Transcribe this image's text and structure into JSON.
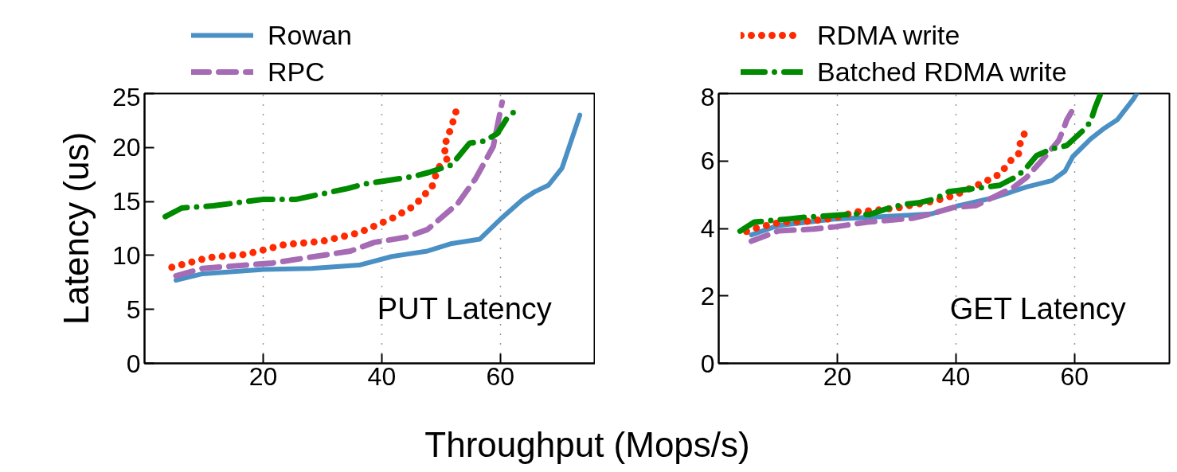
{
  "chart_data": [
    {
      "type": "line",
      "ylabel": "Latency (us)",
      "xlabel": "Throughput (Mops/s)",
      "annotations": [
        "PUT Latency"
      ],
      "xlim": [
        0,
        76
      ],
      "ylim": [
        0,
        25
      ],
      "xticks": [
        20,
        40,
        60
      ],
      "yticks": [
        0,
        5,
        10,
        15,
        20,
        25
      ],
      "grid": "x",
      "legend": "top",
      "series": [
        {
          "name": "Rowan",
          "color": "#4a90c4",
          "line_style": "solid",
          "x": [
            5.3,
            9.8,
            20.1,
            28.1,
            36.2,
            41.7,
            47.7,
            51.8,
            56.5,
            60.3,
            63.8,
            65.8,
            68.1,
            70.4,
            73.4
          ],
          "values": [
            7.7,
            8.3,
            8.7,
            8.8,
            9.1,
            9.9,
            10.4,
            11.1,
            11.5,
            13.5,
            15.2,
            15.9,
            16.5,
            18.1,
            23.0
          ]
        },
        {
          "name": "RPC",
          "color": "#a66bb5",
          "line_style": "dashed",
          "x": [
            5.3,
            9.8,
            21.6,
            34.7,
            38.7,
            44.2,
            47.7,
            52.8,
            55.8,
            58.8,
            60.3
          ],
          "values": [
            8.1,
            8.8,
            9.3,
            10.4,
            11.2,
            11.7,
            12.4,
            14.8,
            17.1,
            20.1,
            24.2
          ]
        },
        {
          "name": "RDMA write",
          "color": "#ff2a00",
          "line_style": "dotted",
          "x": [
            4.6,
            10.8,
            17.1,
            23.6,
            29.9,
            36.2,
            42.0,
            45.5,
            48.5,
            49.5,
            51.3,
            50.4,
            51.8,
            52.5
          ],
          "values": [
            8.9,
            9.8,
            10.1,
            11.0,
            11.3,
            12.1,
            13.5,
            14.6,
            16.4,
            18.1,
            19.1,
            19.9,
            22.0,
            23.3
          ]
        },
        {
          "name": "Batched RDMA write",
          "color": "#008a00",
          "line_style": "dashdot",
          "x": [
            3.5,
            6.3,
            11.6,
            20.1,
            25.6,
            34.2,
            36.9,
            45.2,
            48.0,
            51.8,
            54.8,
            57.3,
            59.5,
            61.1,
            63.1
          ],
          "values": [
            13.6,
            14.4,
            14.6,
            15.2,
            15.2,
            16.2,
            16.6,
            17.3,
            17.7,
            18.4,
            20.4,
            20.6,
            21.3,
            22.7,
            23.7
          ]
        }
      ]
    },
    {
      "type": "line",
      "annotations": [
        "GET Latency"
      ],
      "xlim": [
        0,
        76
      ],
      "ylim": [
        0,
        8
      ],
      "xticks": [
        20,
        40,
        60
      ],
      "yticks": [
        0,
        2,
        4,
        6,
        8
      ],
      "grid": "x",
      "series": [
        {
          "color": "#4a90c4",
          "line_style": "solid",
          "x": [
            5.5,
            10.1,
            19.7,
            30.5,
            35.8,
            40.1,
            46.6,
            51.9,
            56.2,
            58.4,
            59.7,
            62.7,
            65.1,
            67.2,
            69.9,
            70.5
          ],
          "values": [
            3.81,
            4.09,
            4.28,
            4.38,
            4.43,
            4.66,
            4.92,
            5.23,
            5.42,
            5.7,
            6.13,
            6.65,
            6.98,
            7.22,
            7.83,
            8.0
          ]
        },
        {
          "color": "#a66bb5",
          "line_style": "dashed",
          "x": [
            5.5,
            10.1,
            16.0,
            19.7,
            25.1,
            32.6,
            35.8,
            39.6,
            43.4,
            46.6,
            49.8,
            51.9,
            54.6,
            57.3,
            58.1,
            58.7,
            59.5
          ],
          "values": [
            3.62,
            3.93,
            3.98,
            4.05,
            4.19,
            4.3,
            4.43,
            4.62,
            4.68,
            4.95,
            5.23,
            5.51,
            6.04,
            6.6,
            6.93,
            7.22,
            7.46
          ]
        },
        {
          "color": "#ff2a00",
          "line_style": "dotted",
          "x": [
            4.7,
            6.7,
            10.6,
            14.9,
            19.2,
            23.2,
            27.2,
            30.5,
            35.6,
            37.7,
            39.9,
            43.6,
            45.5,
            47.4,
            48.5,
            49.8,
            50.6,
            50.9,
            51.9
          ],
          "values": [
            3.91,
            4.03,
            4.19,
            4.21,
            4.3,
            4.49,
            4.55,
            4.62,
            4.79,
            4.88,
            4.99,
            5.28,
            5.44,
            5.61,
            5.85,
            6.13,
            6.22,
            6.6,
            6.92
          ]
        },
        {
          "color": "#008a00",
          "line_style": "dashdot",
          "x": [
            3.6,
            6.0,
            11.7,
            14.4,
            17.0,
            23.0,
            25.4,
            28.1,
            31.0,
            33.7,
            36.4,
            38.8,
            44.4,
            47.4,
            49.8,
            51.4,
            53.6,
            56.0,
            58.7,
            61.9,
            62.7,
            63.5,
            64.3
          ],
          "values": [
            3.92,
            4.19,
            4.28,
            4.33,
            4.36,
            4.43,
            4.41,
            4.57,
            4.71,
            4.76,
            4.87,
            5.09,
            5.21,
            5.28,
            5.5,
            5.7,
            6.16,
            6.35,
            6.46,
            6.98,
            7.17,
            7.6,
            7.95
          ]
        }
      ]
    }
  ]
}
